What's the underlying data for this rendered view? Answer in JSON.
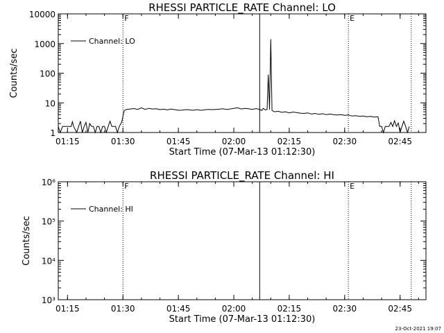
{
  "timestamp": "23-Oct-2021 19:07",
  "chart_data": [
    {
      "type": "line",
      "title": "RHESSI PARTICLE_RATE Channel: LO",
      "xlabel": "Start Time (07-Mar-13 01:12:30)",
      "ylabel": "Counts/sec",
      "x_unit": "time (HH:MM)",
      "xlim": [
        "01:12:30",
        "02:52:00"
      ],
      "xticks": [
        "01:15",
        "01:30",
        "01:45",
        "02:00",
        "02:15",
        "02:30",
        "02:45"
      ],
      "ylim": [
        1,
        10000
      ],
      "yscale": "log",
      "ytick_values": [
        1,
        10,
        100,
        1000,
        10000
      ],
      "ytick_labels": [
        "1",
        "10",
        "100",
        "1000",
        "10000"
      ],
      "legend": {
        "label": "Channel: LO",
        "placement": "top-left"
      },
      "markers": [
        {
          "time": "01:30",
          "label": "F",
          "style": "dotted"
        },
        {
          "time": "02:07",
          "label": "",
          "style": "solid"
        },
        {
          "time": "02:31",
          "label": "E",
          "style": "dotted"
        },
        {
          "time": "02:48",
          "label": "",
          "style": "dotted"
        }
      ],
      "series": [
        {
          "name": "Channel: LO",
          "points": [
            [
              "01:12:30",
              1.6
            ],
            [
              "01:13:00",
              1.0
            ],
            [
              "01:13:40",
              1.6
            ],
            [
              "01:16:00",
              1.6
            ],
            [
              "01:16:20",
              2.3
            ],
            [
              "01:16:40",
              1.6
            ],
            [
              "01:17:30",
              1.0
            ],
            [
              "01:18:00",
              1.6
            ],
            [
              "01:18:30",
              2.4
            ],
            [
              "01:19:00",
              1.0
            ],
            [
              "01:19:30",
              1.6
            ],
            [
              "01:20:00",
              2.2
            ],
            [
              "01:20:30",
              1.0
            ],
            [
              "01:21:00",
              2.0
            ],
            [
              "01:21:30",
              1.6
            ],
            [
              "01:22:00",
              1.6
            ],
            [
              "01:22:30",
              1.0
            ],
            [
              "01:23:00",
              1.6
            ],
            [
              "01:23:30",
              1.6
            ],
            [
              "01:24:00",
              1.0
            ],
            [
              "01:24:30",
              1.6
            ],
            [
              "01:25:00",
              1.6
            ],
            [
              "01:25:30",
              1.0
            ],
            [
              "01:26:00",
              1.6
            ],
            [
              "01:26:30",
              2.4
            ],
            [
              "01:27:00",
              1.6
            ],
            [
              "01:28:00",
              1.6
            ],
            [
              "01:28:30",
              1.0
            ],
            [
              "01:29:00",
              1.6
            ],
            [
              "01:29:40",
              2.2
            ],
            [
              "01:30:20",
              5.5
            ],
            [
              "01:31:00",
              6.0
            ],
            [
              "01:32:00",
              6.2
            ],
            [
              "01:33:00",
              6.4
            ],
            [
              "01:34:00",
              6.0
            ],
            [
              "01:35:00",
              6.8
            ],
            [
              "01:36:00",
              6.0
            ],
            [
              "01:37:00",
              6.5
            ],
            [
              "01:38:00",
              6.2
            ],
            [
              "01:39:00",
              6.3
            ],
            [
              "01:40:00",
              5.9
            ],
            [
              "01:41:00",
              6.1
            ],
            [
              "01:42:00",
              5.8
            ],
            [
              "01:43:00",
              6.2
            ],
            [
              "01:44:00",
              5.9
            ],
            [
              "01:45:00",
              5.6
            ],
            [
              "01:46:00",
              5.7
            ],
            [
              "01:47:00",
              5.9
            ],
            [
              "01:48:00",
              5.8
            ],
            [
              "01:49:00",
              5.6
            ],
            [
              "01:50:00",
              5.9
            ],
            [
              "01:51:00",
              5.6
            ],
            [
              "01:52:00",
              5.8
            ],
            [
              "01:53:00",
              6.0
            ],
            [
              "01:54:00",
              5.9
            ],
            [
              "01:55:00",
              6.0
            ],
            [
              "01:56:00",
              6.1
            ],
            [
              "01:57:00",
              6.3
            ],
            [
              "01:58:00",
              6.0
            ],
            [
              "01:59:00",
              6.2
            ],
            [
              "02:00:00",
              6.5
            ],
            [
              "02:01:00",
              6.8
            ],
            [
              "02:02:00",
              6.2
            ],
            [
              "02:03:00",
              6.5
            ],
            [
              "02:04:00",
              6.3
            ],
            [
              "02:05:00",
              6.0
            ],
            [
              "02:06:00",
              6.4
            ],
            [
              "02:07:00",
              6.0
            ],
            [
              "02:07:30",
              5.5
            ],
            [
              "02:08:00",
              6.5
            ],
            [
              "02:08:30",
              5.8
            ],
            [
              "02:09:00",
              6.0
            ],
            [
              "02:09:20",
              90
            ],
            [
              "02:09:40",
              6.0
            ],
            [
              "02:10:00",
              1400
            ],
            [
              "02:10:20",
              5.5
            ],
            [
              "02:11:00",
              5.0
            ],
            [
              "02:12:00",
              5.2
            ],
            [
              "02:13:00",
              4.8
            ],
            [
              "02:14:00",
              5.0
            ],
            [
              "02:15:00",
              4.6
            ],
            [
              "02:16:00",
              4.9
            ],
            [
              "02:17:00",
              4.7
            ],
            [
              "02:18:00",
              4.5
            ],
            [
              "02:19:00",
              4.4
            ],
            [
              "02:20:00",
              4.6
            ],
            [
              "02:21:00",
              4.2
            ],
            [
              "02:22:00",
              4.4
            ],
            [
              "02:23:00",
              4.1
            ],
            [
              "02:24:00",
              4.3
            ],
            [
              "02:25:00",
              4.0
            ],
            [
              "02:26:00",
              4.2
            ],
            [
              "02:27:00",
              4.0
            ],
            [
              "02:28:00",
              3.9
            ],
            [
              "02:29:00",
              4.0
            ],
            [
              "02:30:00",
              3.8
            ],
            [
              "02:31:00",
              3.9
            ],
            [
              "02:32:00",
              3.6
            ],
            [
              "02:33:00",
              3.7
            ],
            [
              "02:34:00",
              3.5
            ],
            [
              "02:35:00",
              3.6
            ],
            [
              "02:36:00",
              3.4
            ],
            [
              "02:37:00",
              3.5
            ],
            [
              "02:38:00",
              3.3
            ],
            [
              "02:39:00",
              3.4
            ],
            [
              "02:39:30",
              1.6
            ],
            [
              "02:40:00",
              1.6
            ],
            [
              "02:40:30",
              1.0
            ],
            [
              "02:41:00",
              1.6
            ],
            [
              "02:42:00",
              1.6
            ],
            [
              "02:42:30",
              2.2
            ],
            [
              "02:43:00",
              1.6
            ],
            [
              "02:43:30",
              2.5
            ],
            [
              "02:44:00",
              1.6
            ],
            [
              "02:44:30",
              2.1
            ],
            [
              "02:45:00",
              1.0
            ],
            [
              "02:45:30",
              1.6
            ],
            [
              "02:46:00",
              2.4
            ],
            [
              "02:46:30",
              1.6
            ],
            [
              "02:47:00",
              1.0
            ],
            [
              "02:47:30",
              1.6
            ]
          ]
        }
      ]
    },
    {
      "type": "line",
      "title": "RHESSI PARTICLE_RATE Channel: HI",
      "xlabel": "Start Time (07-Mar-13 01:12:30)",
      "ylabel": "Counts/sec",
      "x_unit": "time (HH:MM)",
      "xlim": [
        "01:12:30",
        "02:52:00"
      ],
      "xticks": [
        "01:15",
        "01:30",
        "01:45",
        "02:00",
        "02:15",
        "02:30",
        "02:45"
      ],
      "ylim": [
        1000,
        1000000
      ],
      "yscale": "log",
      "ytick_values": [
        1000,
        10000,
        100000,
        1000000
      ],
      "ytick_labels": [
        "10³",
        "10⁴",
        "10⁵",
        "10⁶"
      ],
      "legend": {
        "label": "Channel: HI",
        "placement": "top-left"
      },
      "markers": [
        {
          "time": "01:30",
          "label": "F",
          "style": "dotted"
        },
        {
          "time": "02:07",
          "label": "",
          "style": "solid"
        },
        {
          "time": "02:31",
          "label": "E",
          "style": "dotted"
        },
        {
          "time": "02:48",
          "label": "",
          "style": "dotted"
        }
      ],
      "series": [
        {
          "name": "Channel: HI",
          "points": []
        }
      ]
    }
  ]
}
